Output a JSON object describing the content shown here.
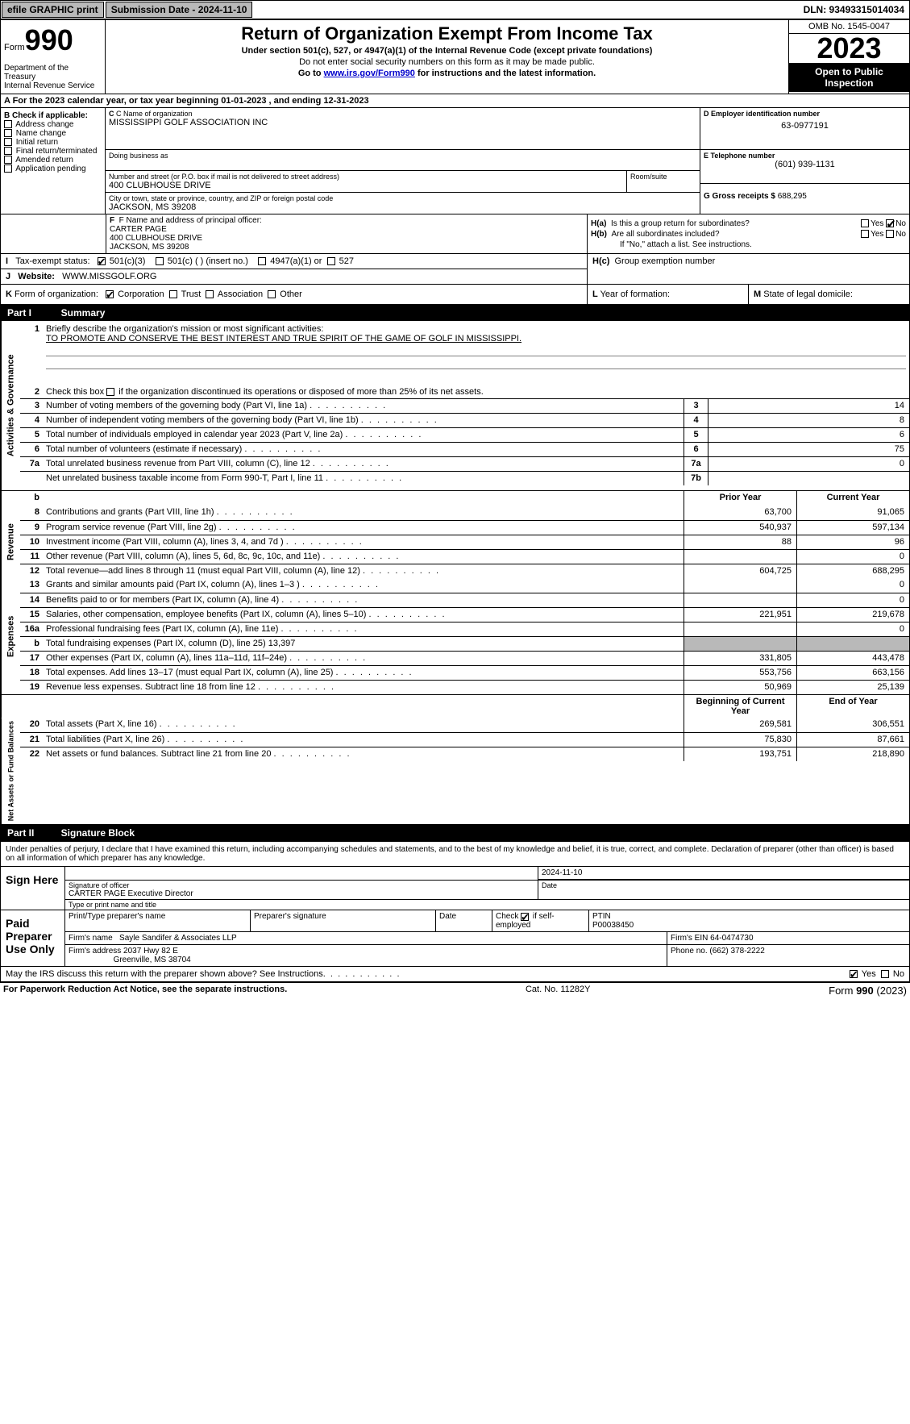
{
  "topbar": {
    "efile": "efile GRAPHIC print",
    "submission_label": "Submission Date - 2024-11-10",
    "dln_label": "DLN: 93493315014034"
  },
  "header": {
    "form_label": "Form",
    "form_number": "990",
    "dept": "Department of the Treasury\nInternal Revenue Service",
    "title": "Return of Organization Exempt From Income Tax",
    "sub": "Under section 501(c), 527, or 4947(a)(1) of the Internal Revenue Code (except private foundations)",
    "note1": "Do not enter social security numbers on this form as it may be made public.",
    "note2_pre": "Go to ",
    "note2_link": "www.irs.gov/Form990",
    "note2_post": " for instructions and the latest information.",
    "omb": "OMB No. 1545-0047",
    "year": "2023",
    "inspection": "Open to Public Inspection"
  },
  "section_a": "A For the 2023 calendar year, or tax year beginning 01-01-2023    , and ending 12-31-2023",
  "section_b": {
    "title": "B Check if applicable:",
    "items": [
      "Address change",
      "Name change",
      "Initial return",
      "Final return/terminated",
      "Amended return",
      "Application pending"
    ]
  },
  "section_c": {
    "name_label": "C Name of organization",
    "name": "MISSISSIPPI GOLF ASSOCIATION INC",
    "dba_label": "Doing business as",
    "dba": "",
    "street_label": "Number and street (or P.O. box if mail is not delivered to street address)",
    "street": "400 CLUBHOUSE DRIVE",
    "room_label": "Room/suite",
    "city_label": "City or town, state or province, country, and ZIP or foreign postal code",
    "city": "JACKSON, MS  39208"
  },
  "section_d": {
    "label": "D Employer identification number",
    "value": "63-0977191"
  },
  "section_e": {
    "label": "E Telephone number",
    "value": "(601) 939-1131"
  },
  "section_g": {
    "label": "G Gross receipts $",
    "value": "688,295"
  },
  "section_f": {
    "label": "F  Name and address of principal officer:",
    "name": "CARTER PAGE",
    "street": "400 CLUBHOUSE DRIVE",
    "city": "JACKSON, MS  39208"
  },
  "section_h": {
    "ha": "H(a)  Is this a group return for subordinates?",
    "hb": "H(b)  Are all subordinates included?",
    "hb_note": "If \"No,\" attach a list. See instructions.",
    "hc": "H(c)  Group exemption number"
  },
  "section_i": {
    "label": "I   Tax-exempt status:",
    "opt1": "501(c)(3)",
    "opt2": "501(c) (  ) (insert no.)",
    "opt3": "4947(a)(1) or",
    "opt4": "527"
  },
  "section_j": {
    "label": "J   Website:",
    "value": "WWW.MISSGOLF.ORG"
  },
  "section_k": {
    "label": "K Form of organization:",
    "opts": [
      "Corporation",
      "Trust",
      "Association",
      "Other"
    ]
  },
  "section_l": {
    "label": "L Year of formation:",
    "value": ""
  },
  "section_m": {
    "label": "M State of legal domicile:",
    "value": ""
  },
  "part1": {
    "label": "Part I",
    "title": "Summary",
    "line1_label": "Briefly describe the organization's mission or most significant activities:",
    "mission": "TO PROMOTE AND CONSERVE THE BEST INTEREST AND TRUE SPIRIT OF THE GAME OF GOLF IN MISSISSIPPI.",
    "line2": "Check this box      if the organization discontinued its operations or disposed of more than 25% of its net assets.",
    "vlabels": {
      "gov": "Activities & Governance",
      "rev": "Revenue",
      "exp": "Expenses",
      "net": "Net Assets or Fund Balances"
    },
    "lines_gov": [
      {
        "n": "3",
        "t": "Number of voting members of the governing body (Part VI, line 1a)",
        "box": "3",
        "v": "14"
      },
      {
        "n": "4",
        "t": "Number of independent voting members of the governing body (Part VI, line 1b)",
        "box": "4",
        "v": "8"
      },
      {
        "n": "5",
        "t": "Total number of individuals employed in calendar year 2023 (Part V, line 2a)",
        "box": "5",
        "v": "6"
      },
      {
        "n": "6",
        "t": "Total number of volunteers (estimate if necessary)",
        "box": "6",
        "v": "75"
      },
      {
        "n": "7a",
        "t": "Total unrelated business revenue from Part VIII, column (C), line 12",
        "box": "7a",
        "v": "0"
      },
      {
        "n": "",
        "t": "Net unrelated business taxable income from Form 990-T, Part I, line 11",
        "box": "7b",
        "v": ""
      }
    ],
    "col_headers": {
      "prior": "Prior Year",
      "current": "Current Year",
      "begin": "Beginning of Current Year",
      "end": "End of Year"
    },
    "lines_rev": [
      {
        "n": "8",
        "t": "Contributions and grants (Part VIII, line 1h)",
        "p": "63,700",
        "c": "91,065"
      },
      {
        "n": "9",
        "t": "Program service revenue (Part VIII, line 2g)",
        "p": "540,937",
        "c": "597,134"
      },
      {
        "n": "10",
        "t": "Investment income (Part VIII, column (A), lines 3, 4, and 7d )",
        "p": "88",
        "c": "96"
      },
      {
        "n": "11",
        "t": "Other revenue (Part VIII, column (A), lines 5, 6d, 8c, 9c, 10c, and 11e)",
        "p": "",
        "c": "0"
      },
      {
        "n": "12",
        "t": "Total revenue—add lines 8 through 11 (must equal Part VIII, column (A), line 12)",
        "p": "604,725",
        "c": "688,295"
      }
    ],
    "lines_exp": [
      {
        "n": "13",
        "t": "Grants and similar amounts paid (Part IX, column (A), lines 1–3 )",
        "p": "",
        "c": "0"
      },
      {
        "n": "14",
        "t": "Benefits paid to or for members (Part IX, column (A), line 4)",
        "p": "",
        "c": "0"
      },
      {
        "n": "15",
        "t": "Salaries, other compensation, employee benefits (Part IX, column (A), lines 5–10)",
        "p": "221,951",
        "c": "219,678"
      },
      {
        "n": "16a",
        "t": "Professional fundraising fees (Part IX, column (A), line 11e)",
        "p": "",
        "c": "0"
      },
      {
        "n": "b",
        "t": "Total fundraising expenses (Part IX, column (D), line 25) 13,397",
        "p": "shade",
        "c": "shade"
      },
      {
        "n": "17",
        "t": "Other expenses (Part IX, column (A), lines 11a–11d, 11f–24e)",
        "p": "331,805",
        "c": "443,478"
      },
      {
        "n": "18",
        "t": "Total expenses. Add lines 13–17 (must equal Part IX, column (A), line 25)",
        "p": "553,756",
        "c": "663,156"
      },
      {
        "n": "19",
        "t": "Revenue less expenses. Subtract line 18 from line 12",
        "p": "50,969",
        "c": "25,139"
      }
    ],
    "lines_net": [
      {
        "n": "20",
        "t": "Total assets (Part X, line 16)",
        "p": "269,581",
        "c": "306,551"
      },
      {
        "n": "21",
        "t": "Total liabilities (Part X, line 26)",
        "p": "75,830",
        "c": "87,661"
      },
      {
        "n": "22",
        "t": "Net assets or fund balances. Subtract line 21 from line 20",
        "p": "193,751",
        "c": "218,890"
      }
    ]
  },
  "part2": {
    "label": "Part II",
    "title": "Signature Block",
    "declaration": "Under penalties of perjury, I declare that I have examined this return, including accompanying schedules and statements, and to the best of my knowledge and belief, it is true, correct, and complete. Declaration of preparer (other than officer) is based on all information of which preparer has any knowledge.",
    "sign_here": "Sign Here",
    "sig_date": "2024-11-10",
    "sig_officer_label": "Signature of officer",
    "sig_officer": "CARTER PAGE Executive Director",
    "sig_date_label": "Date",
    "sig_name_label": "Type or print name and title",
    "paid": "Paid Preparer Use Only",
    "prep_name_label": "Print/Type preparer's name",
    "prep_sig_label": "Preparer's signature",
    "prep_date_label": "Date",
    "prep_self_label": "Check        if self-employed",
    "ptin_label": "PTIN",
    "ptin": "P00038450",
    "firm_name_label": "Firm's name",
    "firm_name": "Sayle Sandifer & Associates LLP",
    "firm_ein_label": "Firm's EIN",
    "firm_ein": "64-0474730",
    "firm_addr_label": "Firm's address",
    "firm_addr1": "2037 Hwy 82 E",
    "firm_addr2": "Greenville, MS  38704",
    "phone_label": "Phone no.",
    "phone": "(662) 378-2222",
    "discuss": "May the IRS discuss this return with the preparer shown above? See Instructions."
  },
  "footer": {
    "left": "For Paperwork Reduction Act Notice, see the separate instructions.",
    "center": "Cat. No. 11282Y",
    "right_pre": "Form ",
    "right_form": "990",
    "right_post": " (2023)"
  }
}
